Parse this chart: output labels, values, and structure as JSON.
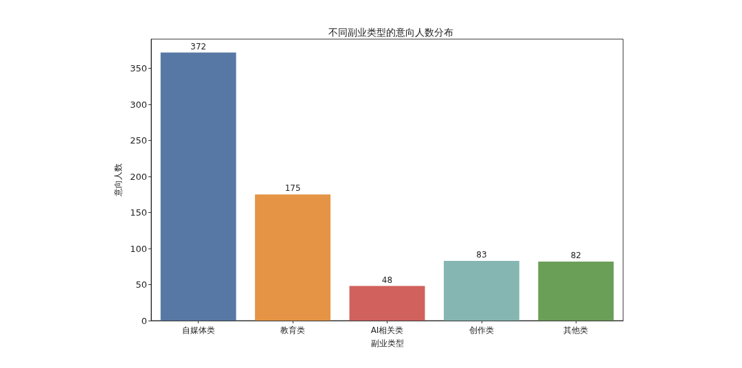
{
  "chart_data": {
    "type": "bar",
    "title": "不同副业类型的意向人数分布",
    "xlabel": "副业类型",
    "ylabel": "意向人数",
    "categories": [
      "自媒体类",
      "教育类",
      "AI相关类",
      "创作类",
      "其他类"
    ],
    "values": [
      372,
      175,
      48,
      83,
      82
    ],
    "colors": [
      "#5778a4",
      "#e49444",
      "#d1615d",
      "#85b6b2",
      "#6a9f58"
    ],
    "ylim": [
      0,
      390.6
    ],
    "yticks": [
      0,
      50,
      100,
      150,
      200,
      250,
      300,
      350
    ],
    "data_labels": true
  }
}
